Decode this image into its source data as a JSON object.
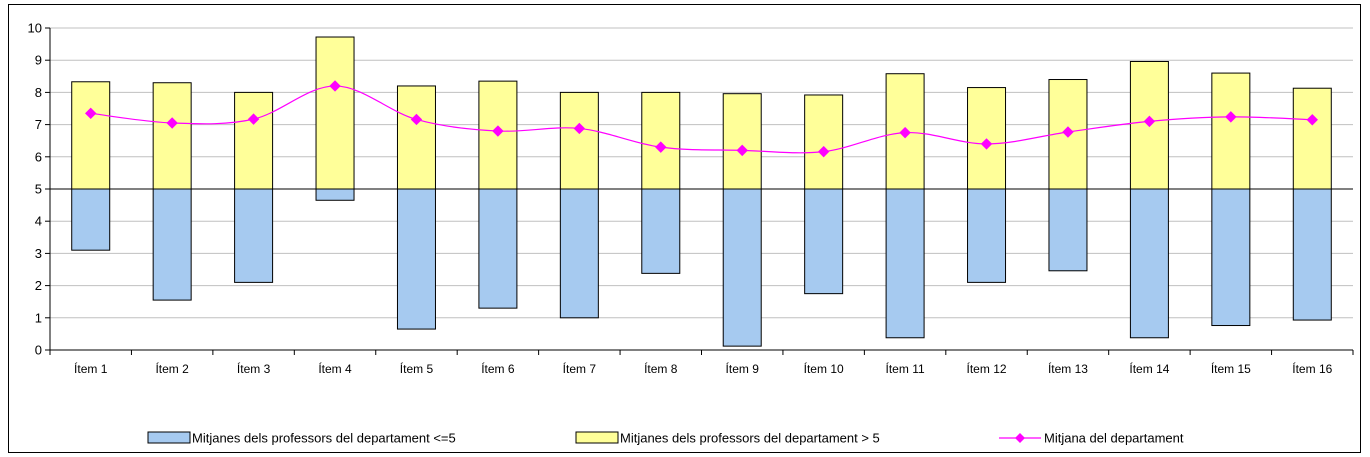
{
  "chart_data": {
    "type": "bar",
    "title": "",
    "xlabel": "",
    "ylabel": "",
    "ylim": [
      0,
      10
    ],
    "yticks": [
      0,
      1,
      2,
      3,
      4,
      5,
      6,
      7,
      8,
      9,
      10
    ],
    "grid": true,
    "baseline": 5,
    "legend_position": "bottom",
    "categories": [
      "Ítem 1",
      "Ítem 2",
      "Ítem 3",
      "Ítem 4",
      "Ítem 5",
      "Ítem 6",
      "Ítem 7",
      "Ítem 8",
      "Ítem 9",
      "Ítem 10",
      "Ítem 11",
      "Ítem 12",
      "Ítem 13",
      "Ítem 14",
      "Ítem 15",
      "Ítem 16"
    ],
    "series": [
      {
        "name": "Mitjanes dels professors del departament <=5",
        "kind": "floating-bar-below-5",
        "color": "#a6caf0",
        "values": [
          3.1,
          1.55,
          2.1,
          4.65,
          0.65,
          1.3,
          1.0,
          2.38,
          0.12,
          1.75,
          0.38,
          2.1,
          2.46,
          0.38,
          0.76,
          0.93
        ]
      },
      {
        "name": "Mitjanes dels professors del departament > 5",
        "kind": "floating-bar-above-5",
        "color": "#ffff99",
        "values": [
          8.33,
          8.3,
          8.0,
          9.72,
          8.2,
          8.35,
          8.0,
          8.0,
          7.96,
          7.92,
          8.58,
          8.15,
          8.4,
          8.96,
          8.6,
          8.13
        ]
      },
      {
        "name": "Mitjana del departament",
        "kind": "line",
        "color": "#ff00ff",
        "values": [
          7.35,
          7.05,
          7.17,
          8.2,
          7.16,
          6.8,
          6.88,
          6.3,
          6.2,
          6.16,
          6.75,
          6.4,
          6.77,
          7.1,
          7.24,
          7.15
        ]
      }
    ]
  }
}
